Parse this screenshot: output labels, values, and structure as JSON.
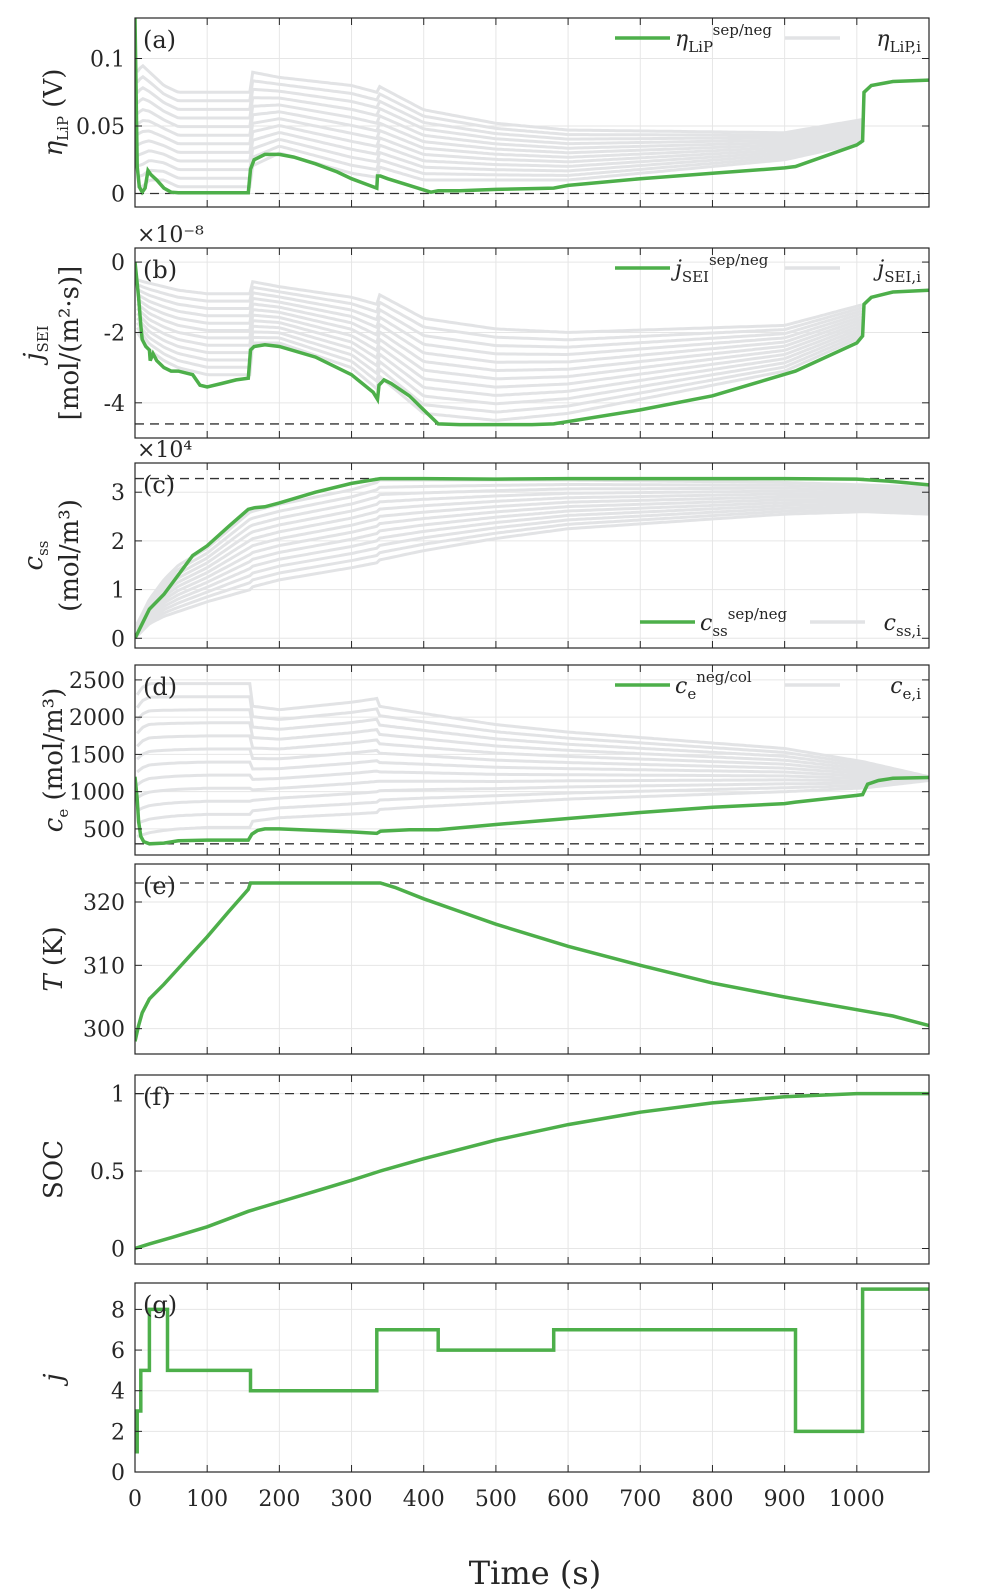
{
  "colors": {
    "primary": "#4daf4a",
    "background_lines": "#e2e3e5",
    "limit": "#333333",
    "grid": "#e6e6e6",
    "axis": "#262626"
  },
  "xaxis": {
    "label": "Time (s)",
    "lim": [
      0,
      1100
    ],
    "ticks": [
      0,
      100,
      200,
      300,
      400,
      500,
      600,
      700,
      800,
      900,
      1000
    ]
  },
  "chart_data": [
    {
      "type": "line",
      "panel": "(a)",
      "ylabel": "η_LiP (V)",
      "ylim": [
        -0.01,
        0.13
      ],
      "yticks": [
        0,
        0.05,
        0.1
      ],
      "ytick_labels": [
        "0",
        "0.05",
        "0.1"
      ],
      "limit_line": 0,
      "legend": {
        "primary": "η_LiP^sep/neg",
        "background": "η_LiP,i",
        "position": "top-right"
      },
      "series": [
        {
          "role": "primary",
          "x": [
            0,
            3,
            6,
            10,
            14,
            18,
            22,
            30,
            40,
            50,
            60,
            80,
            100,
            130,
            157,
            160,
            165,
            180,
            200,
            220,
            250,
            280,
            300,
            320,
            335,
            336,
            340,
            350,
            380,
            410,
            420,
            450,
            500,
            580,
            600,
            700,
            800,
            900,
            915,
            1000,
            1008,
            1010,
            1020,
            1050,
            1100
          ],
          "y": [
            0.13,
            0.02,
            0.005,
            0.001,
            0.004,
            0.017,
            0.014,
            0.01,
            0.004,
            0.001,
            0.0005,
            0.0005,
            0.0005,
            0.0005,
            0.0005,
            0.018,
            0.025,
            0.029,
            0.029,
            0.027,
            0.022,
            0.016,
            0.011,
            0.007,
            0.004,
            0.013,
            0.013,
            0.011,
            0.006,
            0.001,
            0.002,
            0.002,
            0.003,
            0.004,
            0.006,
            0.011,
            0.015,
            0.019,
            0.02,
            0.036,
            0.039,
            0.075,
            0.08,
            0.083,
            0.084
          ]
        },
        {
          "role": "background",
          "x": [
            3,
            10,
            20,
            40,
            60,
            100,
            160,
            161,
            200,
            300,
            335,
            336,
            400,
            500,
            600,
            900,
            1010
          ],
          "y_min": [
            0.005,
            0.005,
            0.01,
            0.01,
            0.005,
            0.005,
            0.005,
            0.02,
            0.03,
            0.015,
            0.012,
            0.02,
            0.01,
            0.01,
            0.01,
            0.025,
            0.038
          ],
          "y_max": [
            0.09,
            0.095,
            0.09,
            0.08,
            0.075,
            0.075,
            0.075,
            0.09,
            0.086,
            0.08,
            0.075,
            0.08,
            0.062,
            0.052,
            0.047,
            0.045,
            0.055
          ]
        }
      ]
    },
    {
      "type": "line",
      "panel": "(b)",
      "ylabel_line1": "j_SEI",
      "ylabel_line2": "[mol/(m²·s)]",
      "ylim": [
        -5,
        0.4
      ],
      "yticks": [
        0,
        -2,
        -4
      ],
      "ytick_labels": [
        "0",
        "-2",
        "-4"
      ],
      "limit_line": -4.6,
      "multiplier": "×10⁻⁸",
      "legend": {
        "primary": "j_SEI^sep/neg",
        "background": "j_SEI,i",
        "position": "top-right"
      },
      "series": [
        {
          "role": "primary",
          "x": [
            0,
            5,
            8,
            10,
            15,
            20,
            21,
            25,
            30,
            40,
            50,
            60,
            80,
            90,
            100,
            120,
            140,
            157,
            160,
            165,
            180,
            200,
            250,
            300,
            330,
            336,
            338,
            345,
            355,
            380,
            400,
            420,
            450,
            500,
            550,
            580,
            700,
            800,
            915,
            1000,
            1008,
            1010,
            1020,
            1050,
            1100
          ],
          "y": [
            0,
            -1.0,
            -1.8,
            -2.2,
            -2.4,
            -2.5,
            -2.8,
            -2.6,
            -2.8,
            -3.0,
            -3.1,
            -3.1,
            -3.2,
            -3.5,
            -3.55,
            -3.45,
            -3.35,
            -3.3,
            -2.5,
            -2.4,
            -2.35,
            -2.4,
            -2.7,
            -3.2,
            -3.7,
            -3.9,
            -3.5,
            -3.35,
            -3.45,
            -3.8,
            -4.2,
            -4.6,
            -4.62,
            -4.62,
            -4.62,
            -4.6,
            -4.2,
            -3.8,
            -3.1,
            -2.3,
            -2.1,
            -1.2,
            -1.0,
            -0.85,
            -0.8
          ]
        },
        {
          "role": "background",
          "x": [
            3,
            10,
            20,
            40,
            60,
            100,
            160,
            161,
            200,
            300,
            335,
            336,
            400,
            500,
            600,
            900,
            1010
          ],
          "y_min": [
            -2,
            -2.2,
            -2.5,
            -2.8,
            -3.0,
            -3.2,
            -3.2,
            -2.3,
            -2.3,
            -3.0,
            -3.6,
            -3.2,
            -4.3,
            -4.5,
            -4.3,
            -3.1,
            -2.1
          ],
          "y_max": [
            -0.5,
            -0.55,
            -0.6,
            -0.7,
            -0.8,
            -0.9,
            -0.9,
            -0.55,
            -0.7,
            -1.0,
            -1.2,
            -0.9,
            -1.6,
            -1.9,
            -2.0,
            -1.8,
            -1.2
          ]
        }
      ]
    },
    {
      "type": "line",
      "panel": "(c)",
      "ylabel_line1": "c_ss",
      "ylabel_line2": "(mol/m³)",
      "ylim": [
        -0.2,
        3.6
      ],
      "yticks": [
        0,
        1,
        2,
        3
      ],
      "ytick_labels": [
        "0",
        "1",
        "2",
        "3"
      ],
      "limit_line": 3.28,
      "multiplier": "×10⁴",
      "legend": {
        "primary": "c_ss^sep/neg",
        "background": "c_ss,i",
        "position": "bottom-right"
      },
      "series": [
        {
          "role": "primary",
          "x": [
            0,
            10,
            20,
            40,
            60,
            80,
            100,
            130,
            157,
            165,
            180,
            200,
            250,
            300,
            340,
            400,
            500,
            600,
            700,
            800,
            900,
            1000,
            1050,
            1100
          ],
          "y": [
            0,
            0.3,
            0.6,
            0.9,
            1.3,
            1.7,
            1.9,
            2.3,
            2.65,
            2.68,
            2.7,
            2.78,
            3.0,
            3.18,
            3.28,
            3.28,
            3.27,
            3.28,
            3.28,
            3.28,
            3.28,
            3.27,
            3.22,
            3.15
          ]
        },
        {
          "role": "background",
          "x": [
            3,
            10,
            20,
            40,
            60,
            100,
            160,
            161,
            200,
            300,
            335,
            336,
            400,
            500,
            600,
            900,
            1010,
            1100
          ],
          "y_min": [
            0.05,
            0.15,
            0.3,
            0.45,
            0.55,
            0.75,
            1.0,
            1.05,
            1.2,
            1.45,
            1.55,
            1.6,
            1.8,
            2.05,
            2.25,
            2.55,
            2.6,
            2.55
          ],
          "y_max": [
            0.3,
            0.5,
            0.8,
            1.2,
            1.5,
            1.85,
            2.6,
            2.6,
            2.75,
            3.05,
            3.2,
            3.25,
            3.25,
            3.25,
            3.25,
            3.2,
            3.15,
            3.1
          ]
        }
      ]
    },
    {
      "type": "line",
      "panel": "(d)",
      "ylabel": "c_e (mol/m³)",
      "ylim": [
        150,
        2700
      ],
      "yticks": [
        500,
        1000,
        1500,
        2000,
        2500
      ],
      "ytick_labels": [
        "500",
        "1000",
        "1500",
        "2000",
        "2500"
      ],
      "limit_line": 300,
      "legend": {
        "primary": "c_e^neg/col",
        "background": "c_e,i",
        "position": "top-right"
      },
      "series": [
        {
          "role": "primary",
          "x": [
            0,
            3,
            5,
            8,
            12,
            20,
            40,
            60,
            100,
            157,
            162,
            170,
            180,
            200,
            250,
            300,
            335,
            340,
            380,
            420,
            500,
            600,
            700,
            800,
            900,
            915,
            1000,
            1008,
            1015,
            1030,
            1050,
            1100
          ],
          "y": [
            1200,
            900,
            600,
            400,
            330,
            300,
            310,
            340,
            350,
            350,
            430,
            480,
            500,
            500,
            480,
            460,
            440,
            470,
            490,
            490,
            560,
            640,
            720,
            790,
            840,
            860,
            950,
            960,
            1100,
            1150,
            1180,
            1190
          ]
        },
        {
          "role": "background",
          "x": [
            3,
            10,
            20,
            40,
            60,
            100,
            160,
            161,
            200,
            300,
            335,
            336,
            400,
            500,
            600,
            900,
            1010,
            1100
          ],
          "y_min": [
            400,
            420,
            450,
            480,
            500,
            520,
            520,
            600,
            650,
            700,
            720,
            760,
            800,
            850,
            900,
            1000,
            1050,
            1150
          ],
          "y_max": [
            2300,
            2400,
            2450,
            2450,
            2450,
            2450,
            2450,
            2150,
            2100,
            2200,
            2250,
            2150,
            2050,
            1900,
            1800,
            1580,
            1400,
            1200
          ]
        }
      ]
    },
    {
      "type": "line",
      "panel": "(e)",
      "ylabel": "T (K)",
      "ylim": [
        296,
        326
      ],
      "yticks": [
        300,
        310,
        320
      ],
      "ytick_labels": [
        "300",
        "310",
        "320"
      ],
      "limit_line": 323,
      "series": [
        {
          "role": "primary",
          "x": [
            0,
            5,
            10,
            20,
            40,
            60,
            80,
            100,
            130,
            157,
            160,
            200,
            250,
            300,
            330,
            340,
            360,
            400,
            450,
            500,
            600,
            700,
            800,
            900,
            1000,
            1050,
            1100
          ],
          "y": [
            298,
            300.5,
            302.5,
            304.7,
            307,
            309.5,
            312,
            314.5,
            318.5,
            322,
            323,
            323,
            323,
            323,
            323,
            323,
            322.3,
            320.5,
            318.5,
            316.5,
            313,
            310,
            307.2,
            305,
            303,
            302,
            300.5
          ]
        }
      ]
    },
    {
      "type": "line",
      "panel": "(f)",
      "ylabel": "SOC",
      "ylim": [
        -0.1,
        1.12
      ],
      "yticks": [
        0,
        0.5,
        1
      ],
      "ytick_labels": [
        "0",
        "0.5",
        "1"
      ],
      "limit_line": 1,
      "series": [
        {
          "role": "primary",
          "x": [
            0,
            10,
            20,
            50,
            100,
            157,
            200,
            250,
            300,
            340,
            400,
            500,
            600,
            700,
            800,
            900,
            1000,
            1100
          ],
          "y": [
            0,
            0.015,
            0.03,
            0.07,
            0.14,
            0.24,
            0.3,
            0.37,
            0.44,
            0.5,
            0.58,
            0.7,
            0.8,
            0.88,
            0.94,
            0.98,
            1.0,
            1.0
          ]
        }
      ]
    },
    {
      "type": "line",
      "panel": "(g)",
      "ylabel": "j",
      "ylim": [
        0,
        9.3
      ],
      "yticks": [
        0,
        2,
        4,
        6,
        8
      ],
      "ytick_labels": [
        "0",
        "2",
        "4",
        "6",
        "8"
      ],
      "series": [
        {
          "role": "primary",
          "step": true,
          "x": [
            0,
            3,
            3,
            8,
            8,
            13,
            13,
            20,
            20,
            45,
            45,
            160,
            160,
            335,
            335,
            420,
            420,
            580,
            580,
            915,
            915,
            1008,
            1008,
            1100
          ],
          "y": [
            1,
            1,
            3,
            3,
            5,
            5,
            5,
            5,
            8,
            8,
            5,
            5,
            4,
            4,
            7,
            7,
            6,
            6,
            7,
            7,
            2,
            2,
            9,
            9
          ]
        }
      ]
    }
  ]
}
